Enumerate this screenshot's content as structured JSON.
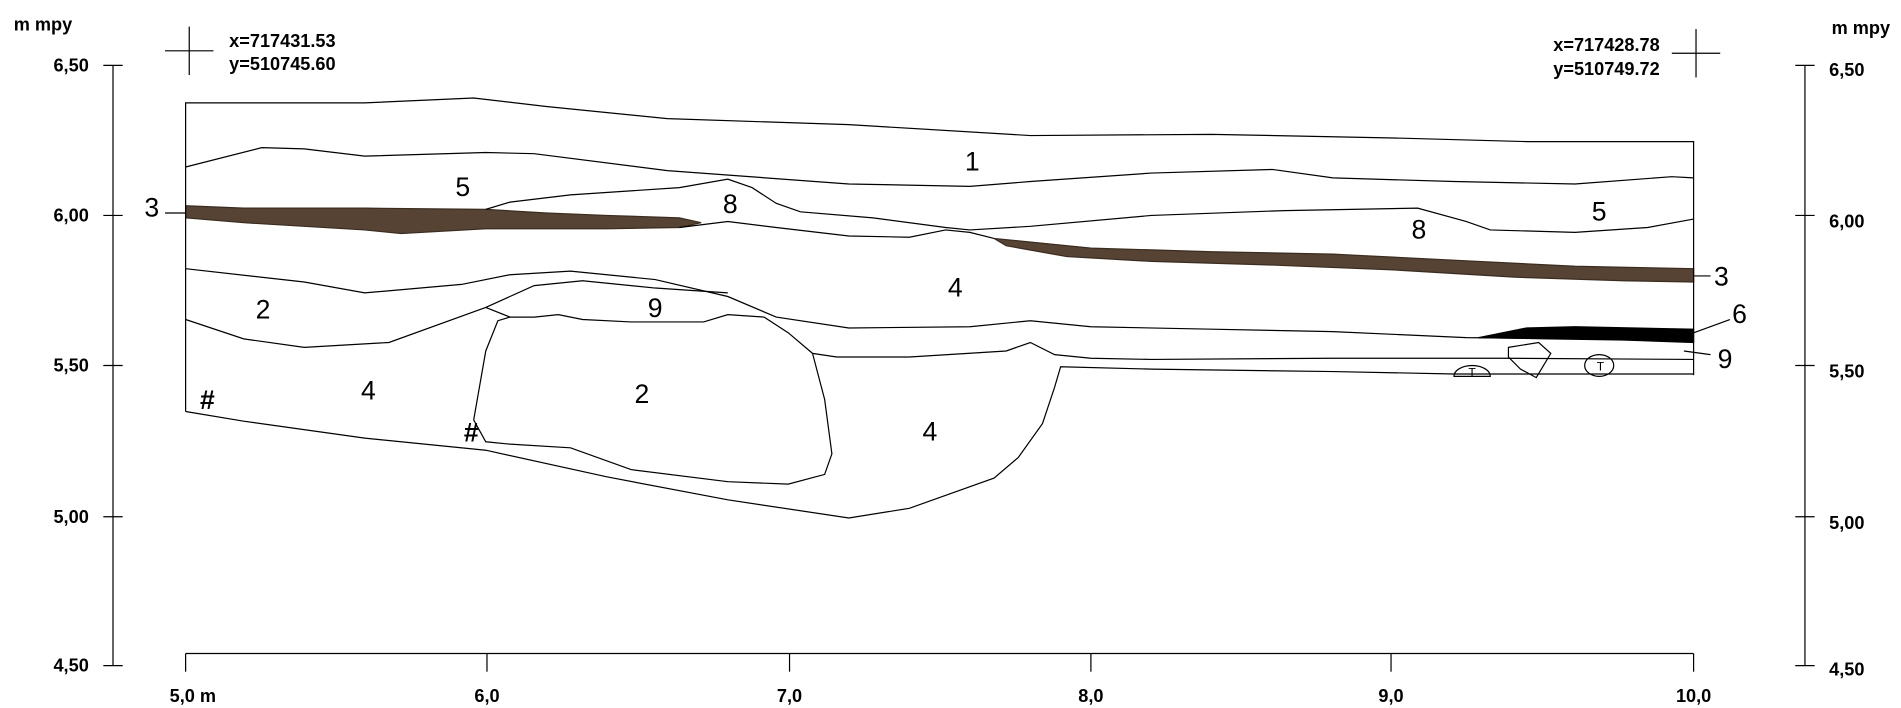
{
  "left_axis": {
    "unit": "m mpy",
    "ticks": [
      "6,50",
      "6,00",
      "5,50",
      "5,00",
      "4,50"
    ]
  },
  "right_axis": {
    "unit": "m mpy",
    "ticks": [
      "6,50",
      "6,00",
      "5,50",
      "5,00",
      "4,50"
    ]
  },
  "bottom_axis": {
    "ticks": [
      "5,0 m",
      "6,0",
      "7,0",
      "8,0",
      "9,0",
      "10,0"
    ]
  },
  "coordinates": [
    {
      "x": "x=717431.53",
      "y": "y=510745.60"
    },
    {
      "x": "x=717428.78",
      "y": "y=510749.72"
    }
  ],
  "layer_labels": [
    "1",
    "5",
    "3",
    "8",
    "8",
    "5",
    "4",
    "3",
    "2",
    "9",
    "6",
    "9",
    "#",
    "4",
    "2",
    "#",
    "4",
    "T",
    "T"
  ]
}
